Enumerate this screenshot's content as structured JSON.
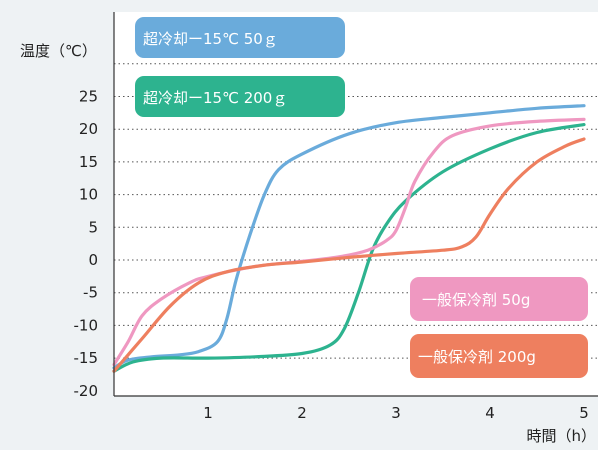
{
  "chart_data": {
    "type": "line",
    "ylabel": "温度（℃）",
    "xlabel": "時間（h）",
    "xlim": [
      0,
      5
    ],
    "ylim": [
      -20,
      30
    ],
    "x_ticks": [
      "1",
      "2",
      "3",
      "4",
      "5"
    ],
    "y_ticks": [
      "25",
      "20",
      "15",
      "10",
      "5",
      "0",
      "-5",
      "-10",
      "-15",
      "-20"
    ],
    "grid": "horizontal dotted",
    "series": [
      {
        "name": "超冷却ー15℃ 50ｇ",
        "color": "#6aabdb",
        "points": [
          [
            0,
            -16.5
          ],
          [
            0.15,
            -15.3
          ],
          [
            0.4,
            -14.8
          ],
          [
            0.7,
            -14.5
          ],
          [
            0.9,
            -14.0
          ],
          [
            1.1,
            -12.5
          ],
          [
            1.2,
            -9.0
          ],
          [
            1.3,
            -3.0
          ],
          [
            1.45,
            4.0
          ],
          [
            1.6,
            10.0
          ],
          [
            1.75,
            13.8
          ],
          [
            2.0,
            16.2
          ],
          [
            2.5,
            19.3
          ],
          [
            3.0,
            21.0
          ],
          [
            3.5,
            21.8
          ],
          [
            4.0,
            22.5
          ],
          [
            4.5,
            23.2
          ],
          [
            5.0,
            23.6
          ]
        ]
      },
      {
        "name": "超冷却ー15℃ 200ｇ",
        "color": "#2db38f",
        "points": [
          [
            0,
            -17.0
          ],
          [
            0.2,
            -15.6
          ],
          [
            0.5,
            -15.0
          ],
          [
            1.0,
            -15.0
          ],
          [
            1.5,
            -14.8
          ],
          [
            2.0,
            -14.3
          ],
          [
            2.3,
            -13.0
          ],
          [
            2.45,
            -10.5
          ],
          [
            2.6,
            -5.0
          ],
          [
            2.75,
            1.5
          ],
          [
            2.9,
            5.5
          ],
          [
            3.1,
            9.0
          ],
          [
            3.5,
            13.5
          ],
          [
            4.0,
            17.0
          ],
          [
            4.5,
            19.5
          ],
          [
            5.0,
            20.7
          ]
        ]
      },
      {
        "name": "一般保冷剤 50g",
        "color": "#ef98c1",
        "points": [
          [
            0,
            -16.0
          ],
          [
            0.15,
            -12.5
          ],
          [
            0.3,
            -8.5
          ],
          [
            0.5,
            -6.0
          ],
          [
            0.8,
            -3.5
          ],
          [
            1.0,
            -2.5
          ],
          [
            1.5,
            -1.0
          ],
          [
            2.0,
            -0.2
          ],
          [
            2.4,
            0.5
          ],
          [
            2.7,
            1.5
          ],
          [
            2.9,
            3.0
          ],
          [
            3.0,
            4.5
          ],
          [
            3.1,
            8.0
          ],
          [
            3.2,
            12.0
          ],
          [
            3.4,
            16.5
          ],
          [
            3.6,
            19.0
          ],
          [
            4.0,
            20.5
          ],
          [
            4.5,
            21.2
          ],
          [
            5.0,
            21.5
          ]
        ]
      },
      {
        "name": "一般保冷剤 200g",
        "color": "#ee7f5f",
        "points": [
          [
            0,
            -17.0
          ],
          [
            0.3,
            -12.0
          ],
          [
            0.6,
            -7.0
          ],
          [
            0.9,
            -3.5
          ],
          [
            1.2,
            -1.8
          ],
          [
            1.6,
            -0.8
          ],
          [
            2.0,
            -0.3
          ],
          [
            2.5,
            0.4
          ],
          [
            3.0,
            1.0
          ],
          [
            3.5,
            1.5
          ],
          [
            3.7,
            2.0
          ],
          [
            3.85,
            3.5
          ],
          [
            4.0,
            7.0
          ],
          [
            4.2,
            11.0
          ],
          [
            4.5,
            15.0
          ],
          [
            4.8,
            17.4
          ],
          [
            5.0,
            18.5
          ]
        ]
      }
    ]
  }
}
